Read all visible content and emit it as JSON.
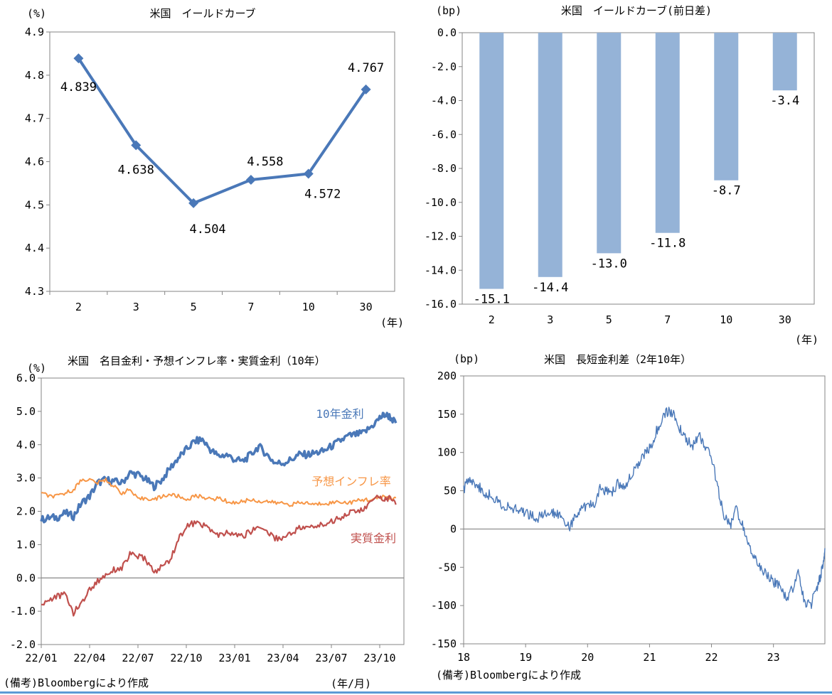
{
  "colors": {
    "line_blue": "#4a78b8",
    "bar_blue": "#95b3d7",
    "nominal": "#4a78b8",
    "inflation": "#f79646",
    "real": "#c0504d",
    "spread": "#4a78b8",
    "axis": "#868686",
    "rule": "#5b9bd5"
  },
  "chart_data": [
    {
      "type": "line",
      "title": "米国　イールドカーブ",
      "ylabel": "(%)",
      "xlabel": "(年)",
      "categories": [
        "2",
        "3",
        "5",
        "7",
        "10",
        "30"
      ],
      "values": [
        4.839,
        4.638,
        4.504,
        4.558,
        4.572,
        4.767
      ],
      "data_labels": [
        "4.839",
        "4.638",
        "4.504",
        "4.558",
        "4.572",
        "4.767"
      ],
      "ylim": [
        4.3,
        4.9
      ],
      "yticks": [
        "4.3",
        "4.4",
        "4.5",
        "4.6",
        "4.7",
        "4.8",
        "4.9"
      ],
      "marker": "diamond",
      "grid": false
    },
    {
      "type": "bar",
      "title": "米国　イールドカーブ(前日差)",
      "ylabel": "(bp)",
      "xlabel": "(年)",
      "categories": [
        "2",
        "3",
        "5",
        "7",
        "10",
        "30"
      ],
      "values": [
        -15.1,
        -14.4,
        -13.0,
        -11.8,
        -8.7,
        -3.4
      ],
      "data_labels": [
        "-15.1",
        "-14.4",
        "-13.0",
        "-11.8",
        "-8.7",
        "-3.4"
      ],
      "ylim": [
        -16.0,
        0.0
      ],
      "yticks": [
        "0.0",
        "-2.0",
        "-4.0",
        "-6.0",
        "-8.0",
        "-10.0",
        "-12.0",
        "-14.0",
        "-16.0"
      ],
      "grid": false
    },
    {
      "type": "line",
      "title": "米国　名目金利・予想インフレ率・実質金利（10年）",
      "ylabel": "(%)",
      "xlabel": "(年/月)",
      "ylim": [
        -2.0,
        6.0
      ],
      "yticks": [
        "6.0",
        "5.0",
        "4.0",
        "3.0",
        "2.0",
        "1.0",
        "0.0",
        "-1.0",
        "-2.0"
      ],
      "xticks": [
        "22/01",
        "22/04",
        "22/07",
        "22/10",
        "23/01",
        "23/04",
        "23/07",
        "23/10"
      ],
      "x_tick_values": [
        0,
        3,
        6,
        9,
        12,
        15,
        18,
        21
      ],
      "x_range": [
        0,
        22.5
      ],
      "x_unit": "months since 2022-01",
      "zero_line": true,
      "series": [
        {
          "name": "10年金利",
          "x": [
            0,
            0.5,
            1,
            1.5,
            2,
            2.5,
            3,
            3.5,
            4,
            4.5,
            5,
            5.5,
            6,
            6.5,
            7,
            7.5,
            8,
            8.5,
            9,
            9.5,
            10,
            10.5,
            11,
            11.5,
            12,
            12.5,
            13,
            13.5,
            14,
            14.5,
            15,
            15.5,
            16,
            16.5,
            17,
            17.5,
            18,
            18.5,
            19,
            19.5,
            20,
            20.5,
            21,
            21.3,
            21.6,
            22.0
          ],
          "values": [
            1.75,
            1.8,
            1.82,
            1.95,
            1.85,
            2.25,
            2.45,
            2.85,
            2.95,
            2.9,
            2.85,
            3.15,
            3.1,
            2.95,
            2.75,
            2.95,
            3.3,
            3.6,
            3.85,
            4.1,
            4.15,
            3.85,
            3.65,
            3.7,
            3.55,
            3.5,
            3.7,
            3.95,
            3.7,
            3.45,
            3.45,
            3.55,
            3.7,
            3.7,
            3.75,
            3.8,
            3.95,
            4.1,
            4.25,
            4.3,
            4.35,
            4.55,
            4.8,
            4.9,
            4.85,
            4.65
          ]
        },
        {
          "name": "予想インフレ率",
          "x": [
            0,
            0.5,
            1,
            1.5,
            2,
            2.5,
            3,
            3.5,
            4,
            4.5,
            5,
            5.5,
            6,
            6.5,
            7,
            7.5,
            8,
            8.5,
            9,
            9.5,
            10,
            10.5,
            11,
            11.5,
            12,
            12.5,
            13,
            13.5,
            14,
            14.5,
            15,
            15.5,
            16,
            16.5,
            17,
            17.5,
            18,
            18.5,
            19,
            19.5,
            20,
            20.5,
            21,
            21.3,
            21.6,
            22.0
          ],
          "values": [
            2.55,
            2.45,
            2.45,
            2.55,
            2.65,
            2.95,
            2.95,
            2.85,
            2.95,
            2.75,
            2.55,
            2.65,
            2.35,
            2.4,
            2.35,
            2.45,
            2.5,
            2.45,
            2.35,
            2.45,
            2.45,
            2.35,
            2.4,
            2.3,
            2.25,
            2.3,
            2.35,
            2.3,
            2.3,
            2.25,
            2.25,
            2.2,
            2.25,
            2.25,
            2.2,
            2.25,
            2.25,
            2.3,
            2.25,
            2.3,
            2.35,
            2.35,
            2.4,
            2.45,
            2.4,
            2.4
          ]
        },
        {
          "name": "実質金利",
          "x": [
            0,
            0.5,
            1,
            1.5,
            2,
            2.5,
            3,
            3.5,
            4,
            4.5,
            5,
            5.5,
            6,
            6.5,
            7,
            7.5,
            8,
            8.5,
            9,
            9.5,
            10,
            10.5,
            11,
            11.5,
            12,
            12.5,
            13,
            13.5,
            14,
            14.5,
            15,
            15.5,
            16,
            16.5,
            17,
            17.5,
            18,
            18.5,
            19,
            19.5,
            20,
            20.5,
            21,
            21.3,
            21.6,
            22.0
          ],
          "values": [
            -0.8,
            -0.65,
            -0.55,
            -0.5,
            -1.05,
            -0.75,
            -0.35,
            -0.1,
            0.1,
            0.25,
            0.3,
            0.7,
            0.65,
            0.55,
            0.15,
            0.35,
            0.55,
            1.15,
            1.55,
            1.65,
            1.6,
            1.45,
            1.25,
            1.35,
            1.3,
            1.25,
            1.4,
            1.55,
            1.4,
            1.2,
            1.2,
            1.35,
            1.5,
            1.5,
            1.55,
            1.6,
            1.7,
            1.8,
            1.95,
            2.0,
            2.05,
            2.3,
            2.45,
            2.35,
            2.4,
            2.2
          ]
        }
      ],
      "series_labels": [
        "10年金利",
        "予想インフレ率",
        "実質金利"
      ],
      "note": "(備考)Bloombergにより作成"
    },
    {
      "type": "line",
      "title": "米国　長短金利差（2年10年）",
      "ylabel": "(bp)",
      "ylim": [
        -150,
        200
      ],
      "yticks": [
        "200",
        "150",
        "100",
        "50",
        "0",
        "-50",
        "-100",
        "-150"
      ],
      "xticks": [
        "18",
        "19",
        "20",
        "21",
        "22",
        "23"
      ],
      "x_tick_values": [
        18,
        19,
        20,
        21,
        22,
        23
      ],
      "x_range": [
        18,
        23.83
      ],
      "zero_line": true,
      "series": [
        {
          "name": "",
          "x": [
            18,
            18.1,
            18.2,
            18.3,
            18.4,
            18.5,
            18.6,
            18.7,
            18.8,
            18.9,
            19,
            19.1,
            19.2,
            19.3,
            19.4,
            19.5,
            19.6,
            19.7,
            19.8,
            19.9,
            20,
            20.1,
            20.2,
            20.3,
            20.4,
            20.5,
            20.6,
            20.7,
            20.8,
            20.9,
            21,
            21.1,
            21.2,
            21.3,
            21.4,
            21.5,
            21.6,
            21.7,
            21.8,
            21.9,
            22,
            22.1,
            22.2,
            22.3,
            22.4,
            22.5,
            22.6,
            22.7,
            22.8,
            22.9,
            23,
            23.1,
            23.2,
            23.3,
            23.4,
            23.5,
            23.6,
            23.7,
            23.75,
            23.8,
            23.83
          ],
          "values": [
            52,
            68,
            58,
            50,
            45,
            40,
            33,
            28,
            26,
            24,
            22,
            18,
            15,
            18,
            20,
            22,
            16,
            2,
            15,
            25,
            32,
            30,
            55,
            50,
            50,
            60,
            52,
            70,
            85,
            95,
            105,
            125,
            145,
            155,
            148,
            130,
            115,
            110,
            122,
            108,
            95,
            55,
            20,
            5,
            25,
            5,
            -20,
            -40,
            -50,
            -60,
            -70,
            -75,
            -90,
            -80,
            -55,
            -95,
            -100,
            -78,
            -65,
            -45,
            -25
          ]
        }
      ],
      "note": "(備考)Bloombergにより作成"
    }
  ]
}
